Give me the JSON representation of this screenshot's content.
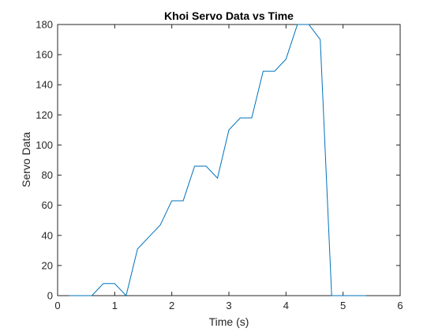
{
  "chart_data": {
    "type": "line",
    "title": "Khoi Servo Data vs Time",
    "xlabel": "Time (s)",
    "ylabel": "Servo Data",
    "xlim": [
      0,
      6
    ],
    "ylim": [
      0,
      180
    ],
    "xticks": [
      0,
      1,
      2,
      3,
      4,
      5,
      6
    ],
    "yticks": [
      0,
      20,
      40,
      60,
      80,
      100,
      120,
      140,
      160,
      180
    ],
    "grid": false,
    "series": [
      {
        "color": "#0072BD",
        "x": [
          0.2,
          0.4,
          0.6,
          0.8,
          1.0,
          1.2,
          1.4,
          1.6,
          1.8,
          2.0,
          2.2,
          2.4,
          2.6,
          2.8,
          3.0,
          3.2,
          3.4,
          3.6,
          3.8,
          4.0,
          4.2,
          4.4,
          4.6,
          4.8,
          5.0,
          5.2,
          5.4
        ],
        "y": [
          0,
          0,
          0,
          8,
          8,
          0,
          31,
          39,
          47,
          63,
          63,
          86,
          86,
          78,
          110,
          118,
          118,
          149,
          149,
          157,
          180,
          180,
          170,
          0,
          0,
          0,
          0
        ]
      }
    ]
  }
}
